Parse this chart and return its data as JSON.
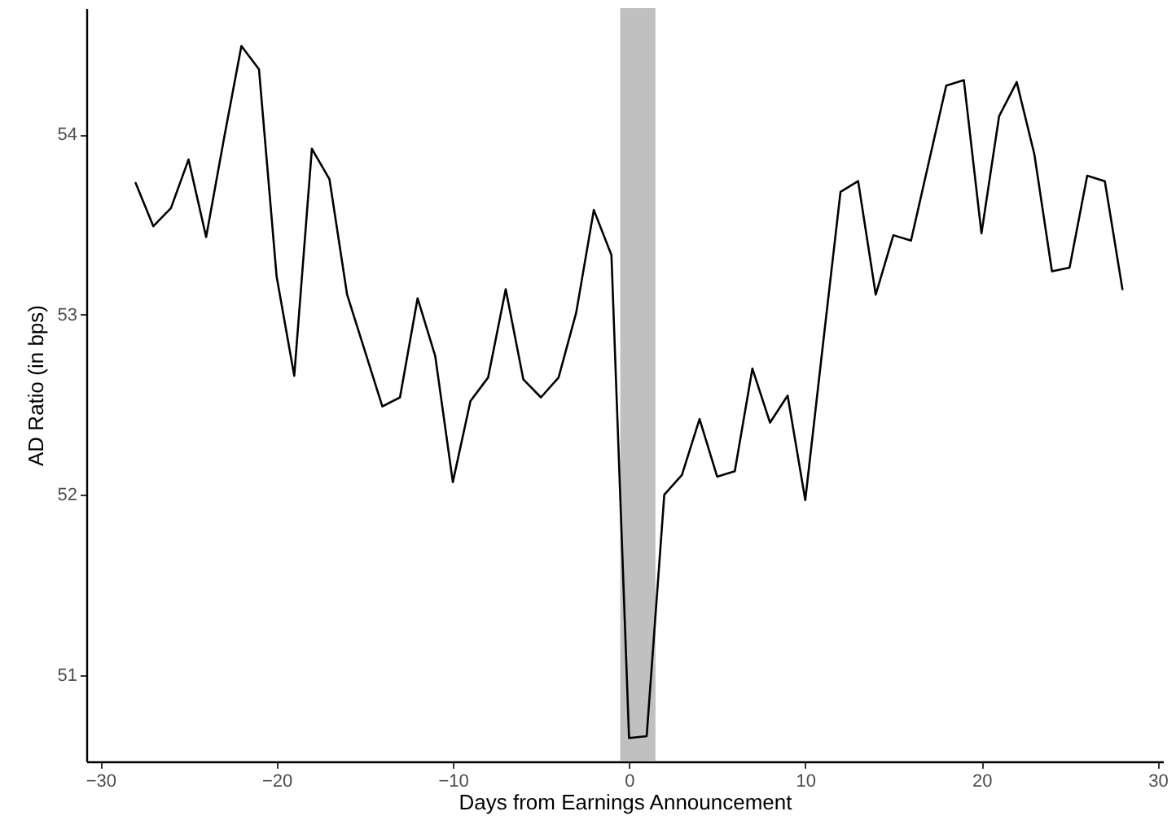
{
  "chart_data": {
    "type": "line",
    "xlabel": "Days from Earnings Announcement",
    "ylabel": "AD Ratio (in bps)",
    "x": [
      -28,
      -27,
      -26,
      -25,
      -24,
      -23,
      -22,
      -21,
      -20,
      -19,
      -18,
      -17,
      -16,
      -15,
      -14,
      -13,
      -12,
      -11,
      -10,
      -9,
      -8,
      -7,
      -6,
      -5,
      -4,
      -3,
      -2,
      -1,
      0,
      1,
      2,
      3,
      4,
      5,
      6,
      7,
      8,
      9,
      10,
      11,
      12,
      13,
      14,
      15,
      16,
      17,
      18,
      19,
      20,
      21,
      22,
      23,
      24,
      25,
      26,
      27,
      28
    ],
    "series": [
      {
        "color": "#000000",
        "values": [
          53.73,
          53.49,
          53.59,
          53.86,
          53.43,
          53.97,
          54.49,
          54.36,
          53.21,
          52.66,
          53.92,
          53.75,
          53.11,
          52.8,
          52.49,
          52.54,
          53.09,
          52.77,
          52.07,
          52.52,
          52.65,
          53.14,
          52.64,
          52.54,
          52.65,
          53.01,
          53.58,
          53.33,
          50.65,
          50.66,
          52.0,
          52.11,
          52.42,
          52.1,
          52.13,
          52.7,
          52.4,
          52.55,
          51.97,
          52.83,
          53.68,
          53.74,
          53.11,
          53.44,
          53.41,
          53.84,
          54.27,
          54.3,
          53.45,
          54.1,
          54.29,
          53.89,
          53.24,
          53.26,
          53.77,
          53.74,
          53.14
        ]
      }
    ],
    "xlim": [
      -30.8,
      30.3
    ],
    "ylim": [
      50.52,
      54.7
    ],
    "xticks": [
      -30,
      -20,
      -10,
      0,
      10,
      20,
      30
    ],
    "yticks": [
      51,
      52,
      53,
      54
    ],
    "bands": [
      {
        "axis": "x",
        "from": -0.5,
        "to": 1.5,
        "color": "#c0c0c0"
      }
    ],
    "line_style": "solid"
  }
}
